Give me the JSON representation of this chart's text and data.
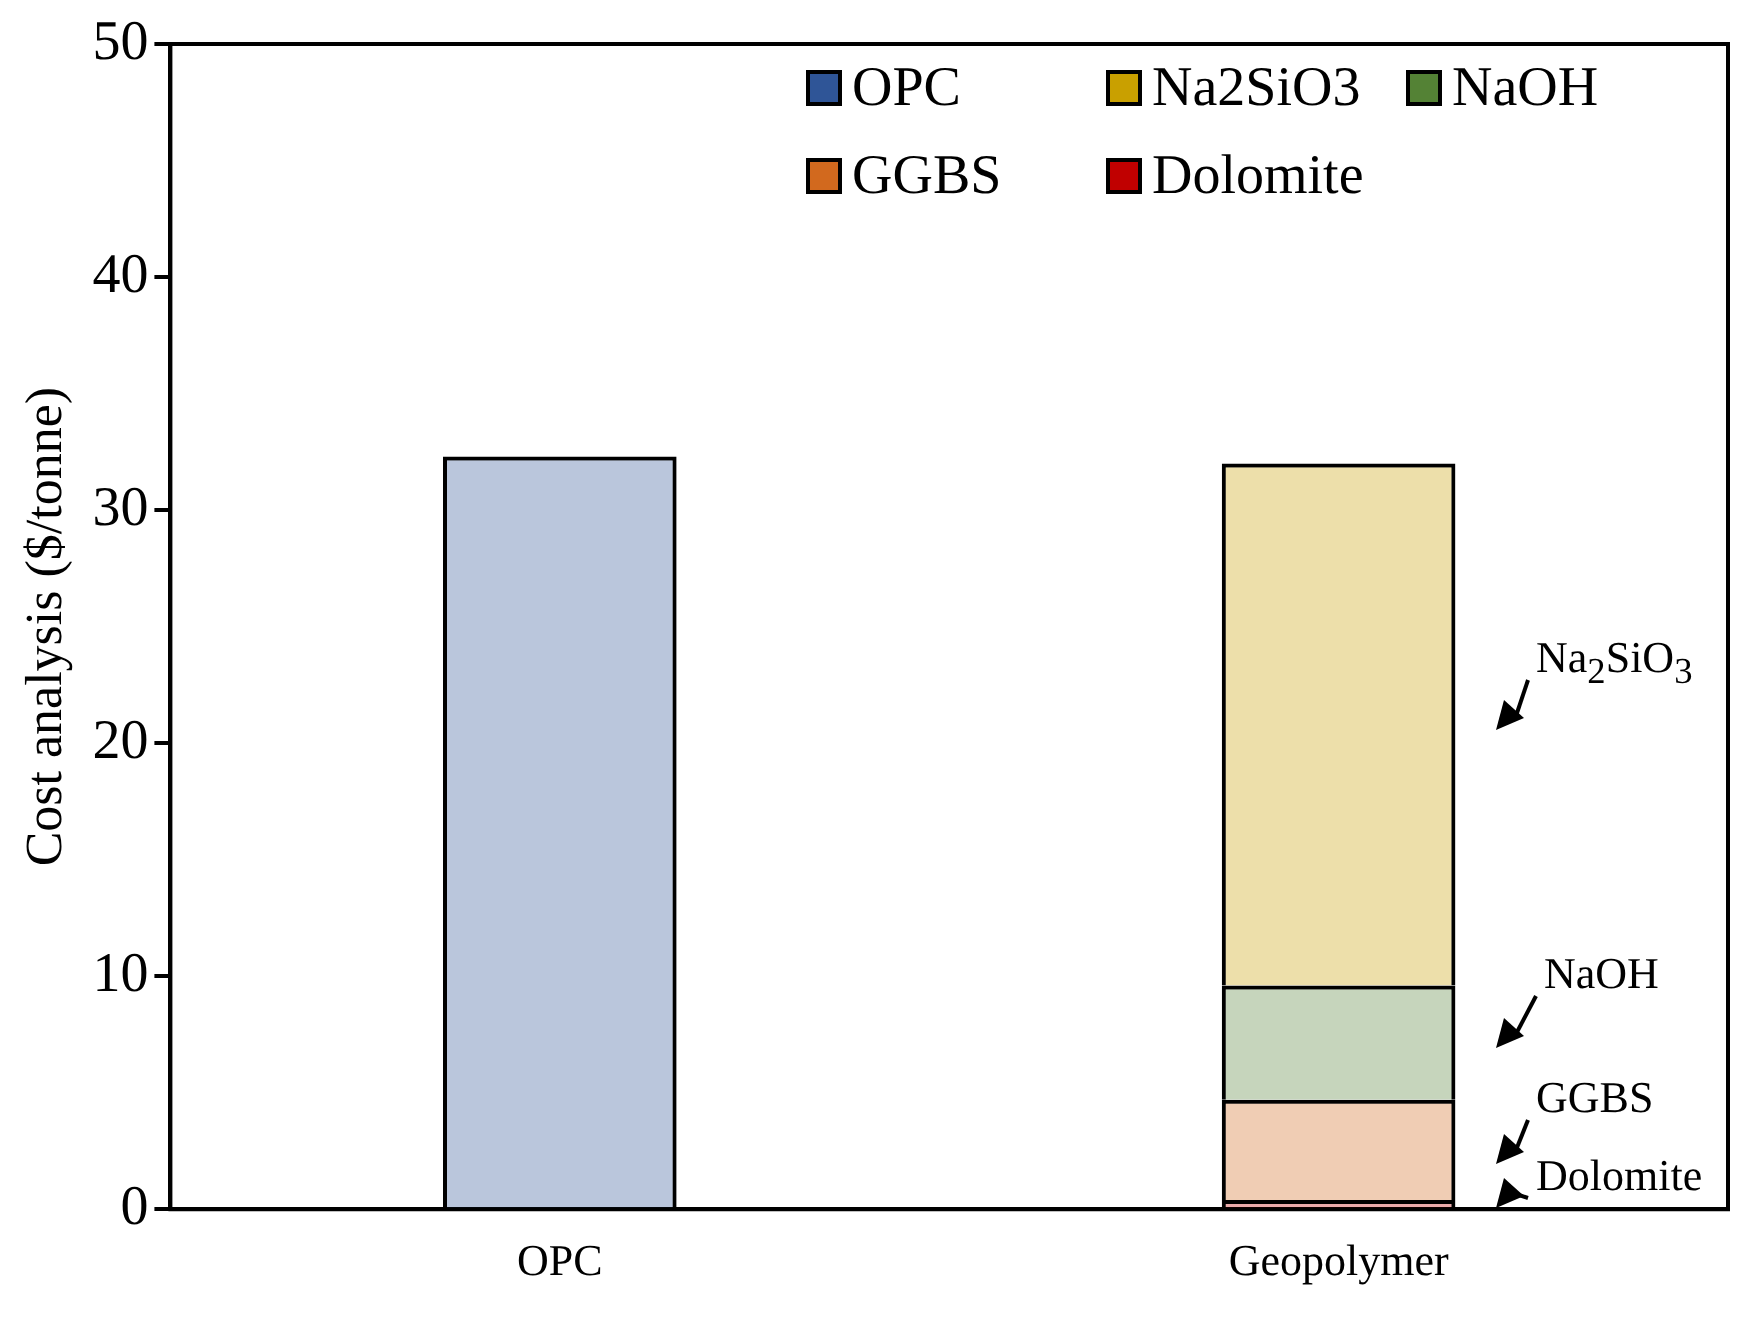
{
  "chart_data": {
    "type": "bar",
    "stacked": true,
    "ylabel": "Cost analysis ($/tonne)",
    "categories": [
      "OPC",
      "Geopolymer"
    ],
    "series": [
      {
        "name": "Dolomite",
        "color": "#c00000",
        "values": [
          null,
          0.4
        ]
      },
      {
        "name": "GGBS",
        "color": "#d2691e",
        "values": [
          null,
          4.3
        ]
      },
      {
        "name": "NaOH",
        "color": "#548235",
        "values": [
          null,
          4.9
        ]
      },
      {
        "name": "Na2SiO3",
        "color": "#c9a000",
        "values": [
          null,
          22.4
        ]
      },
      {
        "name": "OPC",
        "color": "#2f5597",
        "values": [
          32.3,
          null
        ]
      }
    ],
    "ylim": [
      0,
      50
    ],
    "yticks": [
      0,
      10,
      20,
      30,
      40,
      50
    ],
    "grid": false,
    "legend": "top right",
    "annotations": [
      "Na$_{2}$SiO$_{3}$",
      "NaOH",
      "GGBS",
      "Dolomite"
    ]
  }
}
